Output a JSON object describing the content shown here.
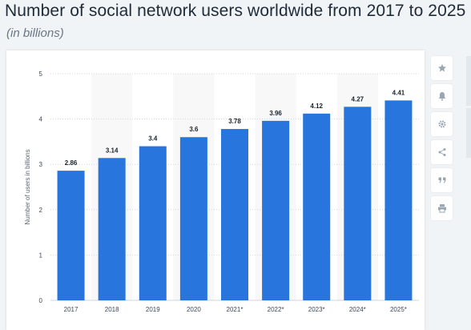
{
  "header": {
    "title": "Number of social network users worldwide from 2017 to 2025",
    "subtitle": "(in billions)"
  },
  "sidebar": {
    "icons": [
      "star-icon",
      "bell-icon",
      "gear-icon",
      "share-icon",
      "quote-icon",
      "print-icon"
    ]
  },
  "colors": {
    "bar": "#2876dd",
    "alt_band": "#f8f8f8",
    "grid": "#cfd6dc",
    "icon": "#9aa7b3"
  },
  "chart_data": {
    "type": "bar",
    "categories": [
      "2017",
      "2018",
      "2019",
      "2020",
      "2021*",
      "2022*",
      "2023*",
      "2024*",
      "2025*"
    ],
    "values": [
      2.86,
      3.14,
      3.4,
      3.6,
      3.78,
      3.96,
      4.12,
      4.27,
      4.41
    ],
    "data_labels": [
      "2.86",
      "3.14",
      "3.4",
      "3.6",
      "3.78",
      "3.96",
      "4.12",
      "4.27",
      "4.41"
    ],
    "ylabel": "Number of users in billions",
    "ylim": [
      0,
      5
    ],
    "yticks": [
      0,
      1,
      2,
      3,
      4,
      5
    ],
    "grid": true
  }
}
